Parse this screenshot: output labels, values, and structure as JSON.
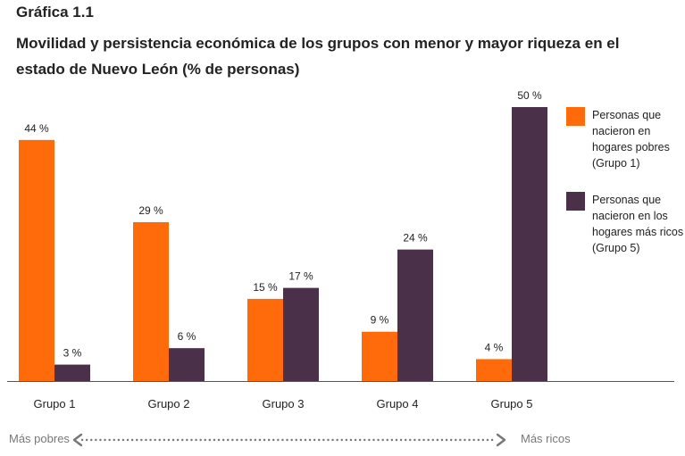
{
  "figure": {
    "label": "Gráfica 1.1",
    "title": "Movilidad y persistencia económica de los grupos con menor y mayor riqueza en el estado de Nuevo León (% de personas)"
  },
  "chart_data": {
    "type": "bar",
    "categories": [
      "Grupo 1",
      "Grupo 2",
      "Grupo 3",
      "Grupo 4",
      "Grupo 5"
    ],
    "series": [
      {
        "name": "Personas que nacieron en hogares pobres (Grupo 1)",
        "values": [
          44,
          29,
          15,
          9,
          4
        ],
        "value_labels": [
          "44 %",
          "29 %",
          "15 %",
          "9 %",
          "4 %"
        ],
        "color": "#FF6B0A"
      },
      {
        "name": "Personas que nacieron en los hogares más ricos (Grupo 5)",
        "values": [
          3,
          6,
          17,
          24,
          50
        ],
        "value_labels": [
          "3 %",
          "6 %",
          "17 %",
          "24 %",
          "50 %"
        ],
        "color": "#4A3048"
      }
    ],
    "ylim": [
      0,
      50
    ],
    "grid": false,
    "legend_position": "right"
  },
  "scale": {
    "left_label": "Más pobres",
    "right_label": "Más ricos",
    "arrow_color": "#777777"
  },
  "axis_color": "#555555"
}
